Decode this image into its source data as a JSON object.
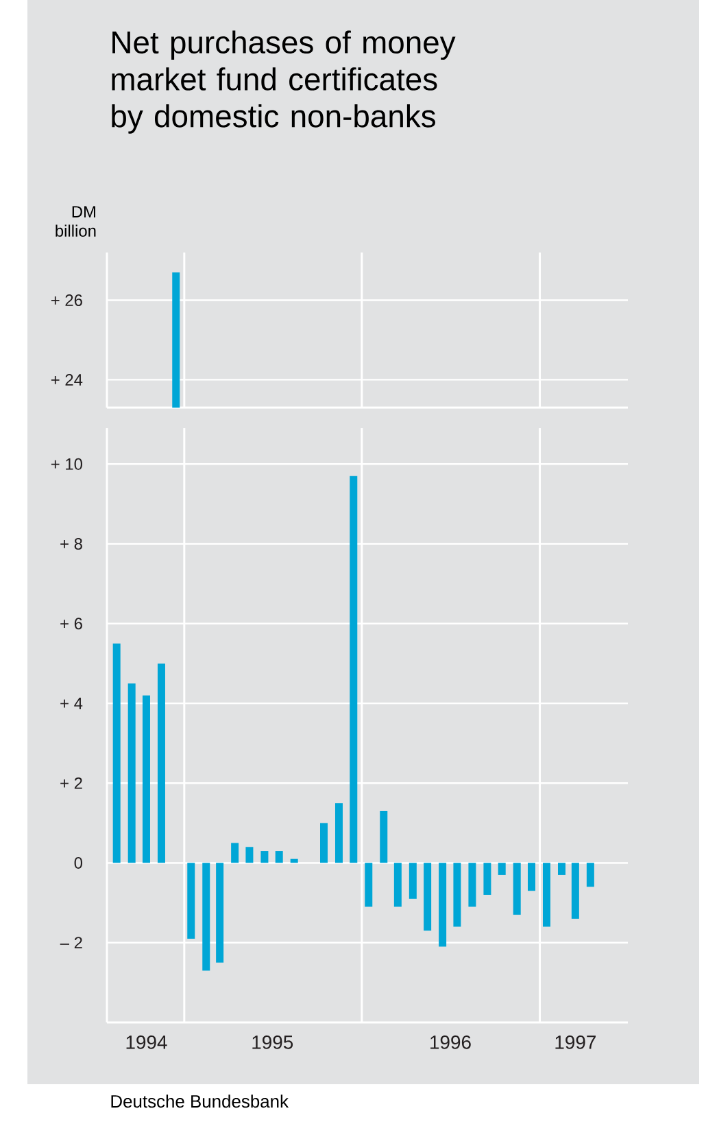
{
  "chart_data": [
    {
      "type": "bar",
      "title": "Net purchases of money market fund certificates by domestic non-banks",
      "ylabel": "DM billion",
      "x": [
        "1994-12-15"
      ],
      "values": [
        26.7
      ],
      "color": "#00a6d6",
      "xlim": [
        "1994-07-26",
        "1997-07-01"
      ],
      "ylim": [
        23.3,
        27.2
      ],
      "yticks": [
        {
          "value": 24,
          "label": "+ 24"
        },
        {
          "value": 26,
          "label": "+ 26"
        }
      ],
      "grid": "y",
      "tick_labels": "y",
      "ref_lines": [
        {
          "axis": "x",
          "value": "1995-01-01",
          "color": "#ffffff"
        },
        {
          "axis": "x",
          "value": "1996-01-01",
          "color": "#ffffff"
        },
        {
          "axis": "x",
          "value": "1997-01-01",
          "color": "#ffffff"
        }
      ]
    },
    {
      "type": "bar",
      "x": [
        "1994-08-15",
        "1994-09-15",
        "1994-10-15",
        "1994-11-15",
        "1994-12-15",
        "1995-01-15",
        "1995-02-15",
        "1995-03-15",
        "1995-04-15",
        "1995-05-15",
        "1995-06-15",
        "1995-07-15",
        "1995-08-15",
        "1995-09-15",
        "1995-10-15",
        "1995-11-15",
        "1995-12-15",
        "1996-01-15",
        "1996-02-15",
        "1996-03-15",
        "1996-04-15",
        "1996-05-15",
        "1996-06-15",
        "1996-07-15",
        "1996-08-15",
        "1996-09-15",
        "1996-10-15",
        "1996-11-15",
        "1996-12-15",
        "1997-01-15",
        "1997-02-15",
        "1997-03-15",
        "1997-04-15"
      ],
      "values": [
        5.5,
        4.5,
        4.2,
        5.0,
        null,
        -1.9,
        -2.7,
        -2.5,
        0.5,
        0.4,
        0.3,
        0.3,
        0.1,
        0,
        1.0,
        1.5,
        9.7,
        -1.1,
        1.3,
        -1.1,
        -0.9,
        -1.7,
        -2.1,
        -1.6,
        -1.1,
        -0.8,
        -0.3,
        -1.3,
        -0.7,
        -1.6,
        -0.3,
        -1.4,
        -0.6
      ],
      "color": "#00a6d6",
      "xlim": [
        "1994-07-26",
        "1997-07-01"
      ],
      "ylim": [
        -4,
        10.9
      ],
      "xticks": [
        {
          "value": "1994-10-15",
          "label": "1994"
        },
        {
          "value": "1995-07-01",
          "label": "1995"
        },
        {
          "value": "1996-07-01",
          "label": "1996"
        },
        {
          "value": "1997-03-15",
          "label": "1997"
        }
      ],
      "yticks": [
        {
          "value": -2,
          "label": "– 2"
        },
        0,
        {
          "value": 2,
          "label": "+ 2"
        },
        {
          "value": 4,
          "label": "+ 4"
        },
        {
          "value": 6,
          "label": "+ 6"
        },
        {
          "value": 8,
          "label": "+ 8"
        },
        {
          "value": 10,
          "label": "+ 10"
        }
      ],
      "grid": "y",
      "ref_lines": [
        {
          "axis": "x",
          "value": "1995-01-01",
          "color": "#ffffff"
        },
        {
          "axis": "x",
          "value": "1996-01-01",
          "color": "#ffffff"
        },
        {
          "axis": "x",
          "value": "1997-01-01",
          "color": "#ffffff"
        }
      ],
      "annotations": [
        "Deutsche Bundesbank"
      ]
    }
  ]
}
